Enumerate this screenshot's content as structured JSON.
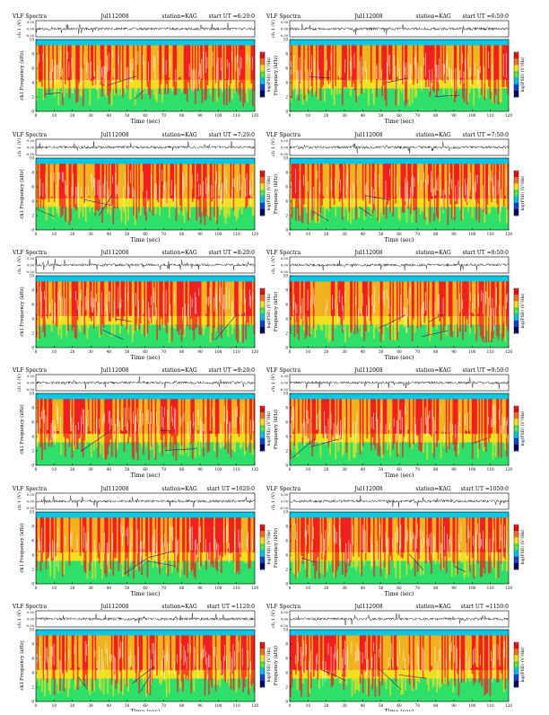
{
  "figure_title": "VLF Spectra",
  "axes_text": {
    "x_label": "Time (sec)",
    "trace_label": "ch 1 (V)",
    "freq_label_left": "ch1 Frequency (kHz)",
    "freq_label_right": "Frequency (kHz)",
    "colorbar_label": "log(PSD) (V²/Hz)"
  },
  "colors": {
    "background": "#ffffff",
    "spectrum_top": "#00c8e6",
    "spectrum_band_green": "#2ee06a",
    "spectrum_yellow": "#f0e020",
    "spectrum_red": "#f02020",
    "spectrum_white_speckle": "#ffffff",
    "trace_line": "#000000"
  },
  "chart_data": [
    {
      "type": "heatmap",
      "title": "VLF Spectra",
      "date": "Jul112008",
      "station": "station=KAG",
      "start": "start UT =6:20:0",
      "xlabel": "Time (sec)",
      "ylabel": "ch1 Frequency (kHz)",
      "xlim": [
        0,
        120
      ],
      "ylim": [
        0,
        10
      ],
      "x_ticks": [
        "0",
        "10",
        "20",
        "30",
        "40",
        "50",
        "60",
        "70",
        "80",
        "90",
        "100",
        "110",
        "120"
      ],
      "y_ticks": [
        "0",
        "2",
        "4",
        "6",
        "8",
        "10"
      ],
      "trace_ylabel": "ch 1 (V)",
      "trace_ticks": [
        "0.50",
        "0.00",
        "-0.50"
      ],
      "colorbar_label": "log(PSD) (V²/Hz)",
      "colorbar_ticks": [
        "-5",
        "-6",
        "-7"
      ],
      "seed": 11
    },
    {
      "type": "heatmap",
      "title": "VLF Spectra",
      "date": "Jul112008",
      "station": "station=KAG",
      "start": "start UT =6:50:0",
      "xlabel": "Time (sec)",
      "ylabel": "Frequency (kHz)",
      "xlim": [
        0,
        120
      ],
      "ylim": [
        0,
        10
      ],
      "x_ticks": [
        "0",
        "10",
        "20",
        "30",
        "40",
        "50",
        "60",
        "70",
        "80",
        "90",
        "100",
        "110",
        "120"
      ],
      "y_ticks": [
        "0",
        "2",
        "4",
        "6",
        "8",
        "10"
      ],
      "trace_ylabel": "ch 1 (V)",
      "trace_ticks": [
        "0.50",
        "0.00",
        "-0.50"
      ],
      "colorbar_label": "log(PSD) (V²/Hz)",
      "colorbar_ticks": [
        "-5",
        "-6",
        "-7"
      ],
      "seed": 23
    },
    {
      "type": "heatmap",
      "title": "VLF Spectra",
      "date": "Jul112008",
      "station": "station=KAG",
      "start": "start UT =7:20:0",
      "xlabel": "Time (sec)",
      "ylabel": "ch1 Frequency (kHz)",
      "xlim": [
        0,
        120
      ],
      "ylim": [
        0,
        10
      ],
      "x_ticks": [
        "0",
        "10",
        "20",
        "30",
        "40",
        "50",
        "60",
        "70",
        "80",
        "90",
        "100",
        "110",
        "120"
      ],
      "y_ticks": [
        "0",
        "2",
        "4",
        "6",
        "8",
        "10"
      ],
      "trace_ylabel": "ch 1 (V)",
      "trace_ticks": [
        "0.50",
        "0.00",
        "-0.50"
      ],
      "colorbar_label": "log(PSD) (V²/Hz)",
      "colorbar_ticks": [
        "-5",
        "-6",
        "-7"
      ],
      "seed": 37
    },
    {
      "type": "heatmap",
      "title": "VLF Spectra",
      "date": "Jul112008",
      "station": "station=KAG",
      "start": "start UT =7:50:0",
      "xlabel": "Time (sec)",
      "ylabel": "Frequency (kHz)",
      "xlim": [
        0,
        120
      ],
      "ylim": [
        0,
        10
      ],
      "x_ticks": [
        "0",
        "10",
        "20",
        "30",
        "40",
        "50",
        "60",
        "70",
        "80",
        "90",
        "100",
        "110",
        "120"
      ],
      "y_ticks": [
        "0",
        "2",
        "4",
        "6",
        "8",
        "10"
      ],
      "trace_ylabel": "ch 1 (V)",
      "trace_ticks": [
        "0.50",
        "0.00",
        "-0.50"
      ],
      "colorbar_label": "log(PSD) (V²/Hz)",
      "colorbar_ticks": [
        "-5",
        "-6",
        "-7"
      ],
      "seed": 41
    },
    {
      "type": "heatmap",
      "title": "VLF Spectra",
      "date": "Jul112008",
      "station": "station=KAG",
      "start": "start UT =8:20:0",
      "xlabel": "Time (sec)",
      "ylabel": "ch1 Frequency (kHz)",
      "xlim": [
        0,
        120
      ],
      "ylim": [
        0,
        10
      ],
      "x_ticks": [
        "0",
        "10",
        "20",
        "30",
        "40",
        "50",
        "60",
        "70",
        "80",
        "90",
        "100",
        "110",
        "120"
      ],
      "y_ticks": [
        "0",
        "2",
        "4",
        "6",
        "8",
        "10"
      ],
      "trace_ylabel": "ch 1 (V)",
      "trace_ticks": [
        "0.50",
        "0.00",
        "-0.50"
      ],
      "colorbar_label": "log(PSD) (V²/Hz)",
      "colorbar_ticks": [
        "-5",
        "-6",
        "-7"
      ],
      "seed": 53
    },
    {
      "type": "heatmap",
      "title": "VLF Spectra",
      "date": "Jul112008",
      "station": "station=KAG",
      "start": "start UT =8:50:0",
      "xlabel": "Time (sec)",
      "ylabel": "Frequency (kHz)",
      "xlim": [
        0,
        120
      ],
      "ylim": [
        0,
        10
      ],
      "x_ticks": [
        "0",
        "10",
        "20",
        "30",
        "40",
        "50",
        "60",
        "70",
        "80",
        "90",
        "100",
        "110",
        "120"
      ],
      "y_ticks": [
        "0",
        "2",
        "4",
        "6",
        "8",
        "10"
      ],
      "trace_ylabel": "ch 1 (V)",
      "trace_ticks": [
        "0.50",
        "0.00",
        "-0.50"
      ],
      "colorbar_label": "log(PSD) (V²/Hz)",
      "colorbar_ticks": [
        "-5",
        "-6",
        "-7"
      ],
      "seed": 67
    },
    {
      "type": "heatmap",
      "title": "VLF Spectra",
      "date": "Jul112008",
      "station": "station=KAG",
      "start": "start UT =9:20:0",
      "xlabel": "Time (sec)",
      "ylabel": "ch1 Frequency (kHz)",
      "xlim": [
        0,
        120
      ],
      "ylim": [
        0,
        10
      ],
      "x_ticks": [
        "0",
        "10",
        "20",
        "30",
        "40",
        "50",
        "60",
        "70",
        "80",
        "90",
        "100",
        "110",
        "120"
      ],
      "y_ticks": [
        "0",
        "2",
        "4",
        "6",
        "8",
        "10"
      ],
      "trace_ylabel": "ch 1 (V)",
      "trace_ticks": [
        "0.50",
        "0.00",
        "-0.50"
      ],
      "colorbar_label": "log(PSD) (V²/Hz)",
      "colorbar_ticks": [
        "-5",
        "-6",
        "-7"
      ],
      "seed": 71
    },
    {
      "type": "heatmap",
      "title": "VLF Spectra",
      "date": "Jul112008",
      "station": "station=KAG",
      "start": "start UT =9:50:0",
      "xlabel": "Time (sec)",
      "ylabel": "Frequency (kHz)",
      "xlim": [
        0,
        120
      ],
      "ylim": [
        0,
        10
      ],
      "x_ticks": [
        "0",
        "10",
        "20",
        "30",
        "40",
        "50",
        "60",
        "70",
        "80",
        "90",
        "100",
        "110",
        "120"
      ],
      "y_ticks": [
        "0",
        "2",
        "4",
        "6",
        "8",
        "10"
      ],
      "trace_ylabel": "ch 1 (V)",
      "trace_ticks": [
        "0.50",
        "0.00",
        "-0.50"
      ],
      "colorbar_label": "log(PSD) (V²/Hz)",
      "colorbar_ticks": [
        "-5",
        "-6",
        "-7"
      ],
      "seed": 83
    },
    {
      "type": "heatmap",
      "title": "VLF Spectra",
      "date": "Jul112008",
      "station": "station=KAG",
      "start": "start UT =1020:0",
      "xlabel": "Time (sec)",
      "ylabel": "ch1 Frequency (kHz)",
      "xlim": [
        0,
        120
      ],
      "ylim": [
        0,
        10
      ],
      "x_ticks": [
        "0",
        "10",
        "20",
        "30",
        "40",
        "50",
        "60",
        "70",
        "80",
        "90",
        "100",
        "110",
        "120"
      ],
      "y_ticks": [
        "0",
        "2",
        "4",
        "6",
        "8",
        "10"
      ],
      "trace_ylabel": "ch 1 (V)",
      "trace_ticks": [
        "0.50",
        "0.00",
        "-0.50"
      ],
      "colorbar_label": "log(PSD) (V²/Hz)",
      "colorbar_ticks": [
        "-5",
        "-6",
        "-7"
      ],
      "seed": 97
    },
    {
      "type": "heatmap",
      "title": "VLF Spectra",
      "date": "Jul112008",
      "station": "station=KAG",
      "start": "start UT =1050:0",
      "xlabel": "Time (sec)",
      "ylabel": "Frequency (kHz)",
      "xlim": [
        0,
        120
      ],
      "ylim": [
        0,
        10
      ],
      "x_ticks": [
        "0",
        "10",
        "20",
        "30",
        "40",
        "50",
        "60",
        "70",
        "80",
        "90",
        "100",
        "110",
        "120"
      ],
      "y_ticks": [
        "0",
        "2",
        "4",
        "6",
        "8",
        "10"
      ],
      "trace_ylabel": "ch 1 (V)",
      "trace_ticks": [
        "0.50",
        "0.00",
        "-0.50"
      ],
      "colorbar_label": "log(PSD) (V²/Hz)",
      "colorbar_ticks": [
        "-5",
        "-6",
        "-7"
      ],
      "seed": 101
    },
    {
      "type": "heatmap",
      "title": "VLF Spectra",
      "date": "Jul112008",
      "station": "station=KAG",
      "start": "start UT =1120:0",
      "xlabel": "Time (sec)",
      "ylabel": "ch1 Frequency (kHz)",
      "xlim": [
        0,
        120
      ],
      "ylim": [
        0,
        10
      ],
      "x_ticks": [
        "0",
        "10",
        "20",
        "30",
        "40",
        "50",
        "60",
        "70",
        "80",
        "90",
        "100",
        "110",
        "120"
      ],
      "y_ticks": [
        "0",
        "2",
        "4",
        "6",
        "8",
        "10"
      ],
      "trace_ylabel": "ch 1 (V)",
      "trace_ticks": [
        "0.50",
        "0.00",
        "-0.50"
      ],
      "colorbar_label": "log(PSD) (V²/Hz)",
      "colorbar_ticks": [
        "-5",
        "-6",
        "-7"
      ],
      "seed": 113
    },
    {
      "type": "heatmap",
      "title": "VLF Spectra",
      "date": "Jul112008",
      "station": "station=KAG",
      "start": "start UT =1150:0",
      "xlabel": "Time (sec)",
      "ylabel": "Frequency (kHz)",
      "xlim": [
        0,
        120
      ],
      "ylim": [
        0,
        10
      ],
      "x_ticks": [
        "0",
        "10",
        "20",
        "30",
        "40",
        "50",
        "60",
        "70",
        "80",
        "90",
        "100",
        "110",
        "120"
      ],
      "y_ticks": [
        "0",
        "2",
        "4",
        "6",
        "8",
        "10"
      ],
      "trace_ylabel": "ch 1 (V)",
      "trace_ticks": [
        "0.50",
        "0.00",
        "-0.50"
      ],
      "colorbar_label": "log(PSD) (V²/Hz)",
      "colorbar_ticks": [
        "-5",
        "-6",
        "-7"
      ],
      "seed": 127
    }
  ]
}
